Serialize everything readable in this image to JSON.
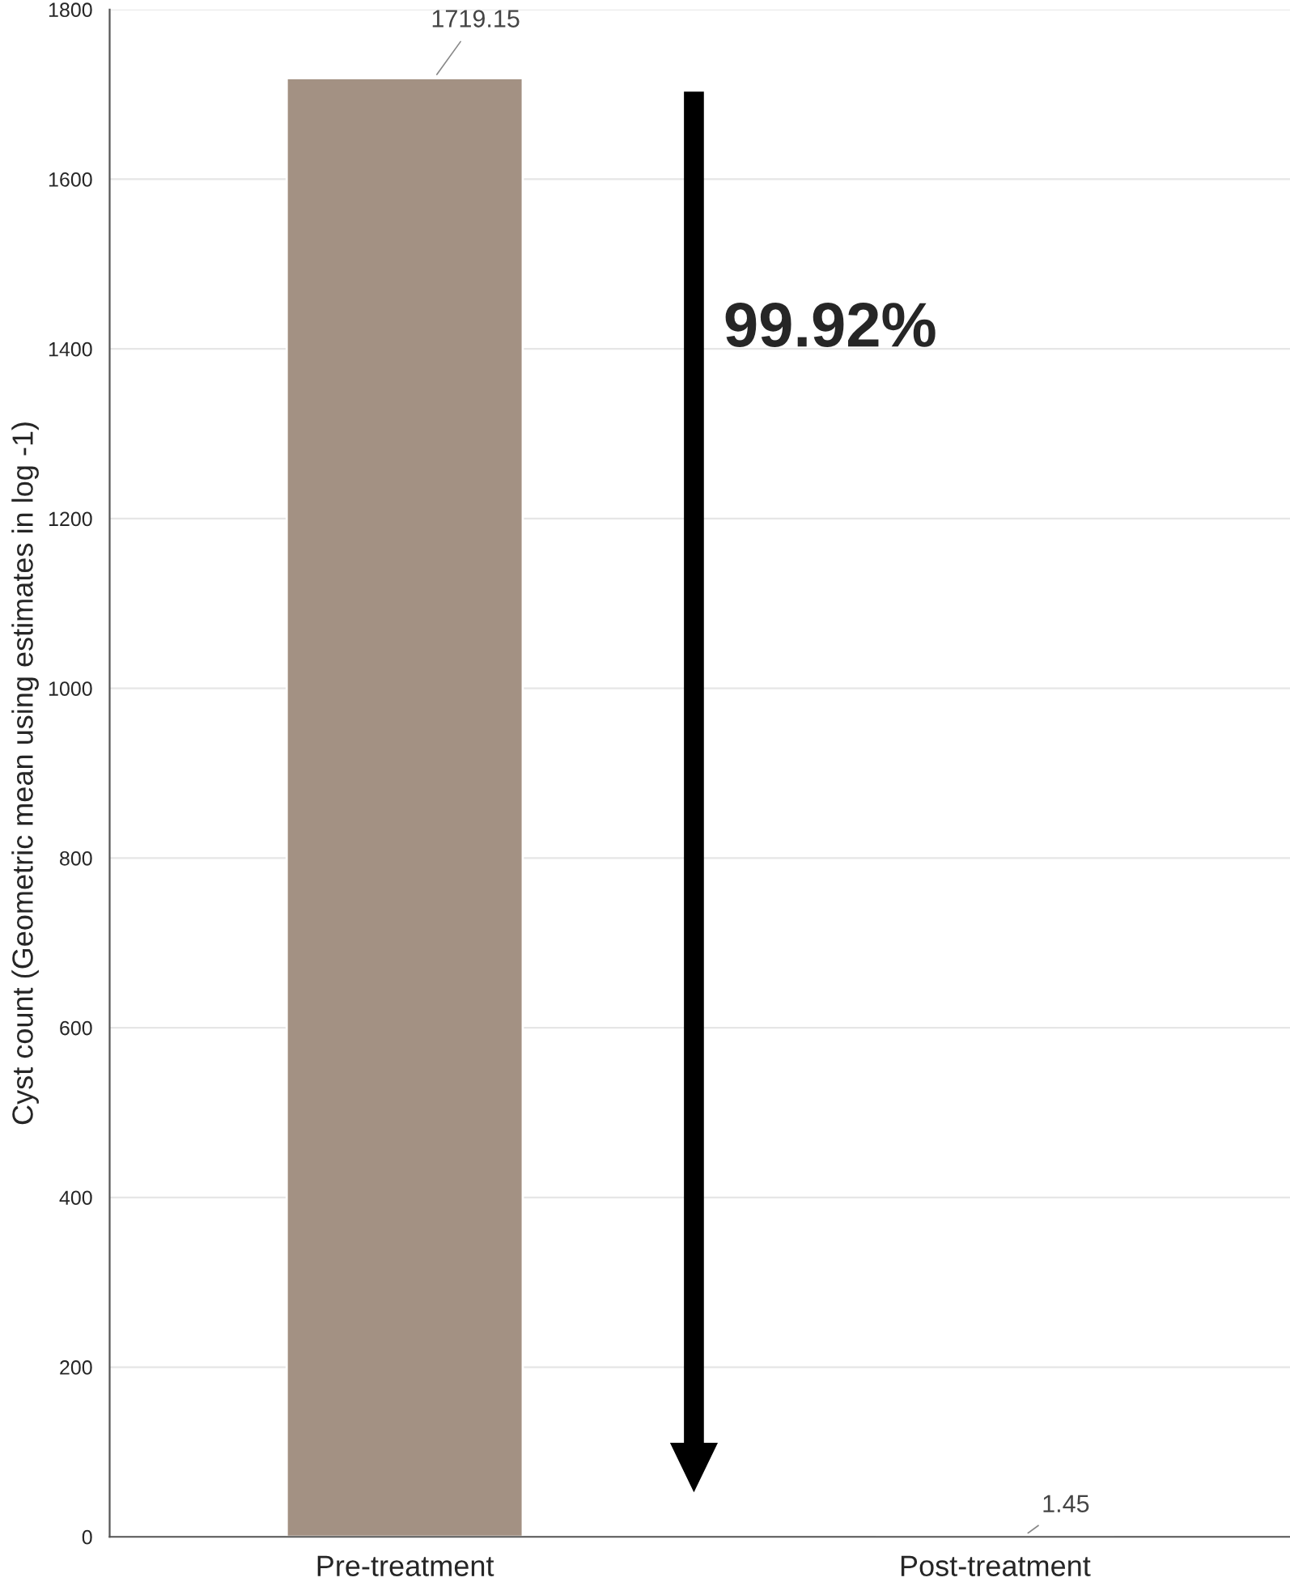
{
  "chart_data": {
    "type": "bar",
    "categories": [
      "Pre-treatment",
      "Post-treatment"
    ],
    "values": [
      1719.15,
      1.45
    ],
    "color": "#a39183",
    "ylabel": "Cyst count (Geometric mean using estimates in log -1)",
    "ylim": [
      0,
      1800
    ],
    "yticks": [
      0,
      200,
      400,
      600,
      800,
      1000,
      1200,
      1400,
      1600,
      1800
    ],
    "grid": "y",
    "data_labels": true,
    "annotations": [
      "99.92%"
    ]
  }
}
